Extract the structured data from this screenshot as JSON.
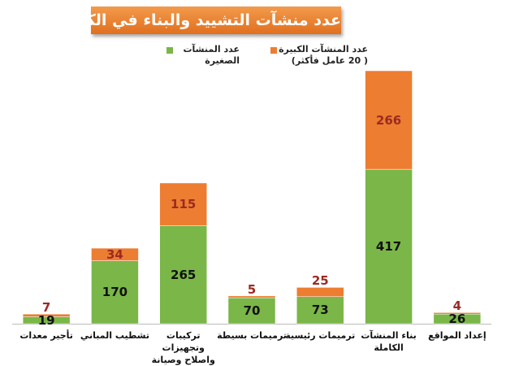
{
  "chart_data": {
    "type": "stacked-bar",
    "title": "عدد منشآت التشييد والبناء في الكويت",
    "categories": [
      "تأجير معدات",
      "تشطيب المباني",
      "تركيبات وتجهيزات واصلاح وصيانة",
      "ترميمات بسيطة",
      "ترميمات رئيسية",
      "بناء المنشآت الكاملة",
      "إعداد المواقع"
    ],
    "series": [
      {
        "name": "عدد المنشآت الصغيرة",
        "color": "#7ab648",
        "label_color": "#111111",
        "values": [
          19,
          170,
          265,
          70,
          73,
          417,
          26
        ]
      },
      {
        "name": "عدد المنشآت الكبيرة ( 20 عامل فأكثر)",
        "color": "#ed7d31",
        "label_color": "#9c2a22",
        "values": [
          7,
          34,
          115,
          5,
          25,
          266,
          4
        ]
      }
    ]
  }
}
